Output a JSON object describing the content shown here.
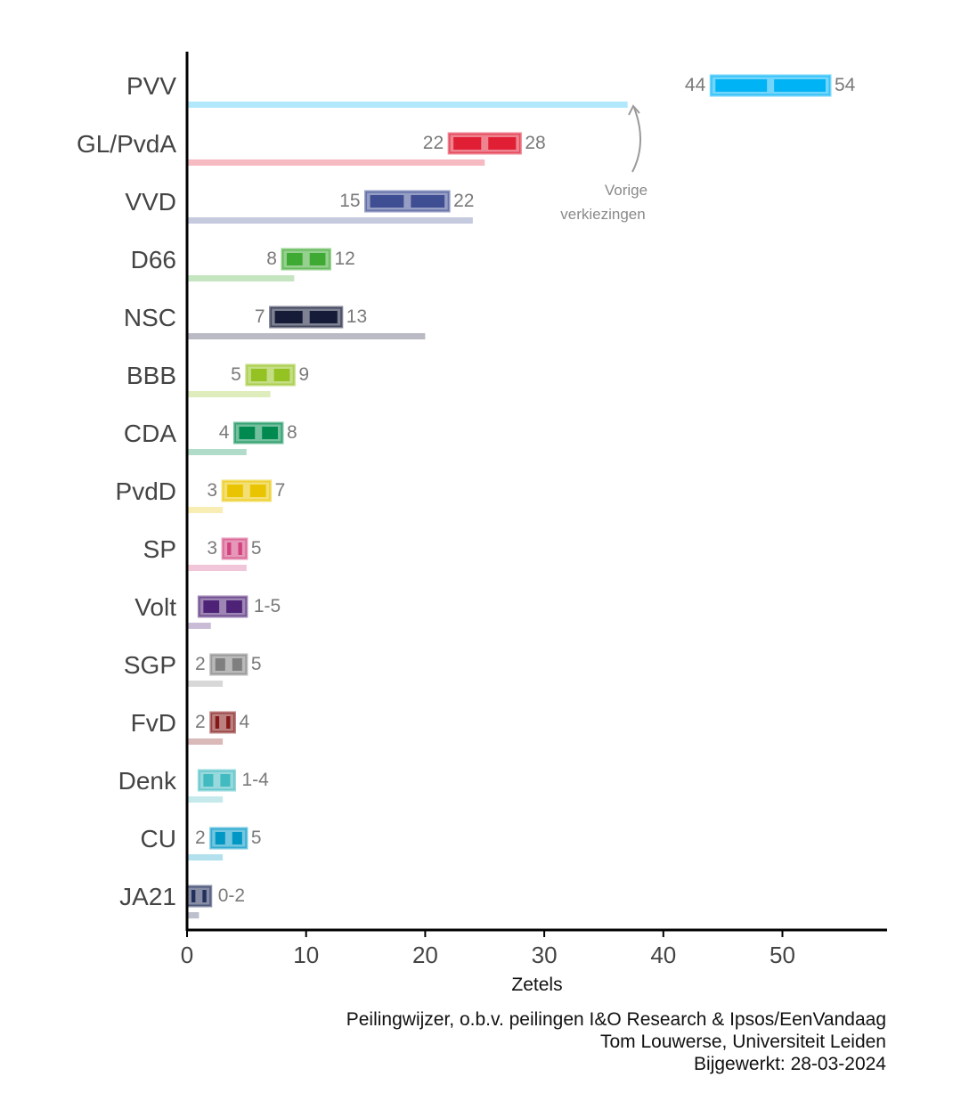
{
  "chart_data": {
    "type": "bar",
    "xlabel": "Zetels",
    "xlim": [
      0,
      58
    ],
    "xticks": [
      0,
      10,
      20,
      30,
      40,
      50
    ],
    "annotation": [
      "Vorige",
      "verkiezingen"
    ],
    "parties": [
      {
        "name": "PVV",
        "low": 44,
        "high": 54,
        "previous": 37,
        "color": "#00b3f5",
        "range_label": ""
      },
      {
        "name": "GL/PvdA",
        "low": 22,
        "high": 28,
        "previous": 25,
        "color": "#e01f35",
        "range_label": ""
      },
      {
        "name": "VVD",
        "low": 15,
        "high": 22,
        "previous": 24,
        "color": "#3f4e93",
        "range_label": ""
      },
      {
        "name": "D66",
        "low": 8,
        "high": 12,
        "previous": 9,
        "color": "#3faa33",
        "range_label": ""
      },
      {
        "name": "NSC",
        "low": 7,
        "high": 13,
        "previous": 20,
        "color": "#161c38",
        "range_label": ""
      },
      {
        "name": "BBB",
        "low": 5,
        "high": 9,
        "previous": 7,
        "color": "#95c223",
        "range_label": ""
      },
      {
        "name": "CDA",
        "low": 4,
        "high": 8,
        "previous": 5,
        "color": "#008a4f",
        "range_label": ""
      },
      {
        "name": "PvdD",
        "low": 3,
        "high": 7,
        "previous": 3,
        "color": "#e9c400",
        "range_label": ""
      },
      {
        "name": "SP",
        "low": 3,
        "high": 5,
        "previous": 5,
        "color": "#d2437e",
        "range_label": ""
      },
      {
        "name": "Volt",
        "low": 1,
        "high": 5,
        "previous": 2,
        "color": "#4e2277",
        "range_label": "1-5"
      },
      {
        "name": "SGP",
        "low": 2,
        "high": 5,
        "previous": 3,
        "color": "#7f7f7f",
        "range_label": ""
      },
      {
        "name": "FvD",
        "low": 2,
        "high": 4,
        "previous": 3,
        "color": "#841818",
        "range_label": ""
      },
      {
        "name": "Denk",
        "low": 1,
        "high": 4,
        "previous": 3,
        "color": "#41bac0",
        "range_label": "1-4"
      },
      {
        "name": "CU",
        "low": 2,
        "high": 5,
        "previous": 3,
        "color": "#0097c4",
        "range_label": ""
      },
      {
        "name": "JA21",
        "low": 0,
        "high": 2,
        "previous": 1,
        "color": "#23305b",
        "range_label": "0-2"
      }
    ]
  },
  "caption": {
    "line1": "Peilingwijzer, o.b.v. peilingen I&O Research & Ipsos/EenVandaag",
    "line2": "Tom Louwerse, Universiteit Leiden",
    "line3": "Bijgewerkt: 28-03-2024"
  }
}
